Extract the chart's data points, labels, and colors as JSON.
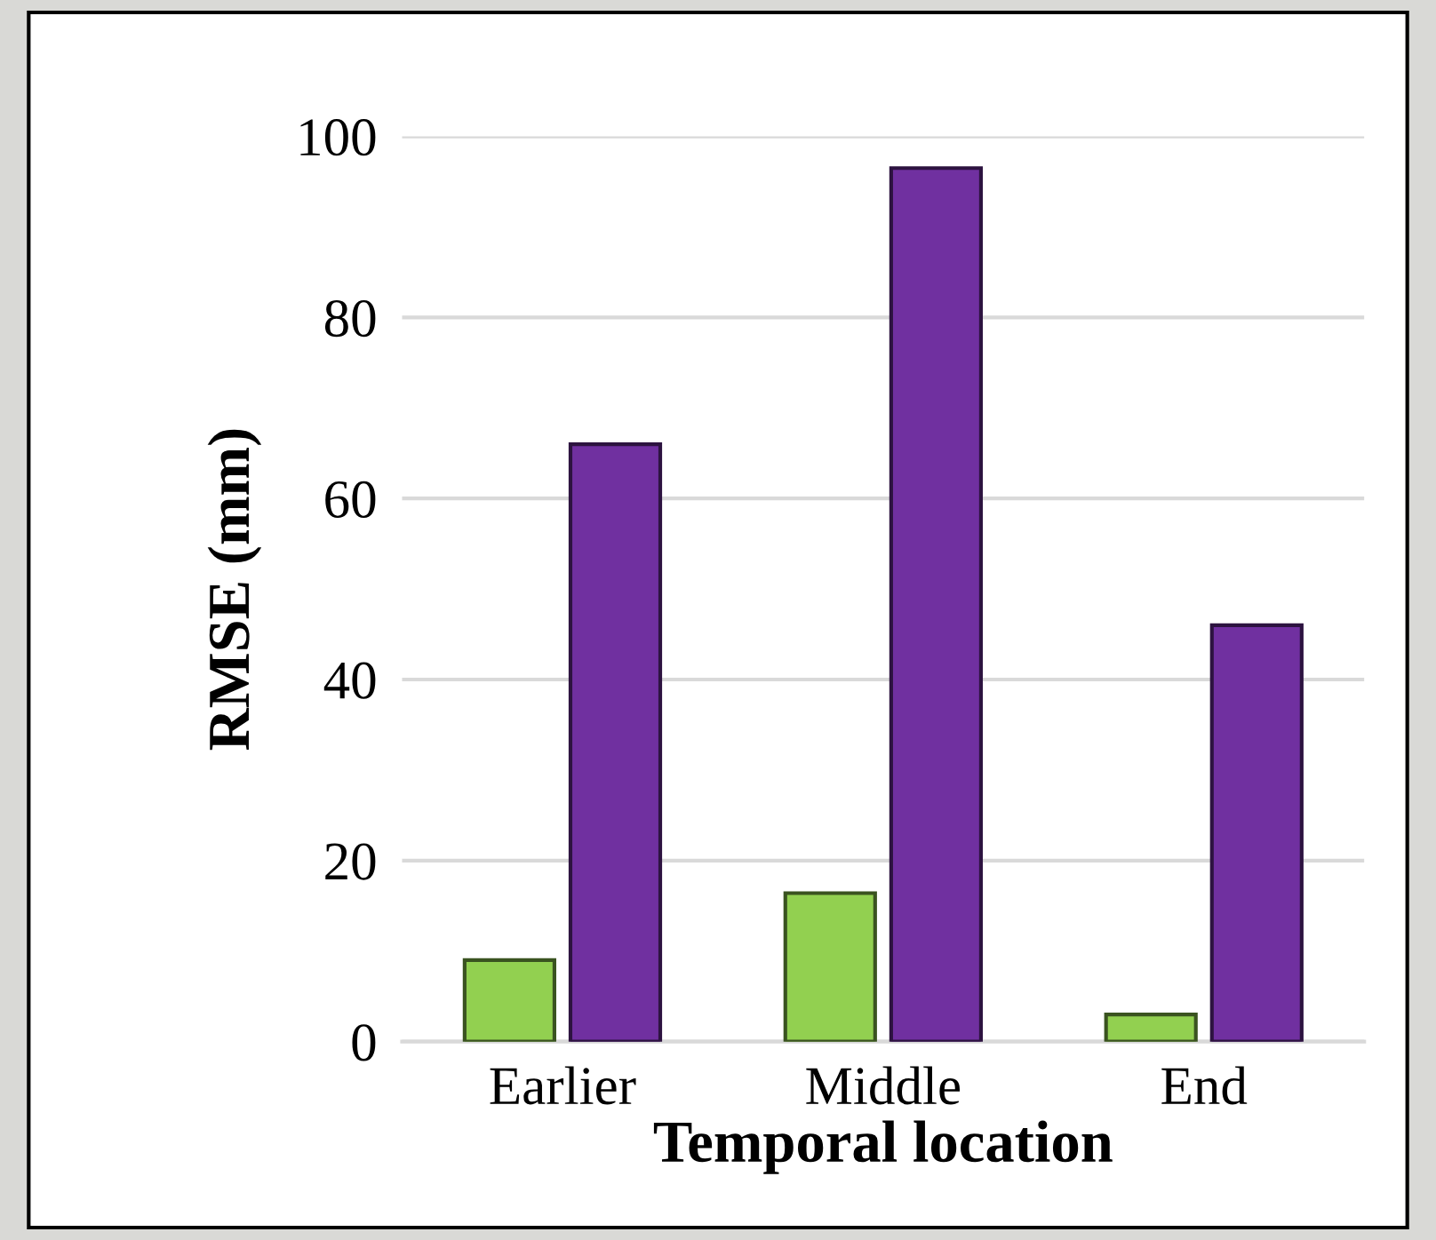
{
  "chart_data": {
    "type": "bar",
    "xlabel": "Temporal location",
    "ylabel": "RMSE (mm)",
    "categories": [
      "Earlier",
      "Middle",
      "End"
    ],
    "series": [
      {
        "color": "#92d050",
        "values": [
          9,
          16.4,
          3
        ]
      },
      {
        "color": "#7030a0",
        "values": [
          66,
          96.5,
          46
        ]
      }
    ],
    "ylim": [
      0,
      100
    ],
    "yticks": [
      0,
      20,
      40,
      60,
      80,
      100
    ],
    "grid": "y"
  }
}
